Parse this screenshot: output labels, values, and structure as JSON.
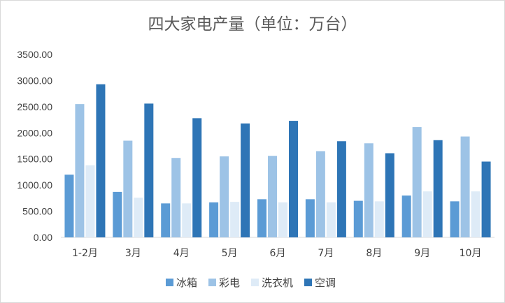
{
  "chart_data": {
    "type": "bar",
    "title": "四大家电产量（单位：万台）",
    "xlabel": "",
    "ylabel": "",
    "categories": [
      "1-2月",
      "3月",
      "4月",
      "5月",
      "6月",
      "7月",
      "8月",
      "9月",
      "10月"
    ],
    "series": [
      {
        "name": "冰箱",
        "color": "#5b9bd5",
        "values": [
          1200,
          870,
          650,
          670,
          730,
          730,
          700,
          800,
          690
        ]
      },
      {
        "name": "彩电",
        "color": "#9dc3e6",
        "values": [
          2550,
          1850,
          1520,
          1550,
          1560,
          1650,
          1800,
          2110,
          1930
        ]
      },
      {
        "name": "洗衣机",
        "color": "#deebf7",
        "values": [
          1380,
          760,
          650,
          680,
          670,
          670,
          690,
          880,
          880
        ]
      },
      {
        "name": "空调",
        "color": "#2e75b6",
        "values": [
          2930,
          2560,
          2280,
          2180,
          2230,
          1840,
          1610,
          1860,
          1450
        ]
      }
    ],
    "ylim": [
      0,
      3500
    ],
    "y_ticks": [
      "0.00",
      "500.00",
      "1000.00",
      "1500.00",
      "2000.00",
      "2500.00",
      "3000.00",
      "3500.00"
    ],
    "grid": false,
    "legend_position": "bottom"
  }
}
